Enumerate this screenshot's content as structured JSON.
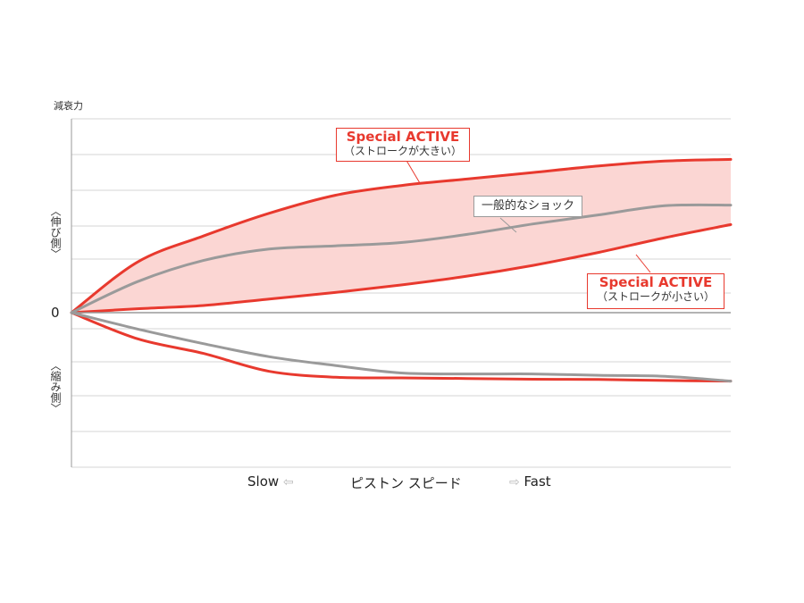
{
  "chart_data": {
    "type": "line",
    "ylabel": "減衰力",
    "ylabel_upper": "︿伸び側﹀",
    "ylabel_lower": "︿縮み側﹀",
    "zero_label": "0",
    "xlabel": "ピストン スピード",
    "x_left_label": "Slow",
    "x_right_label": "Fast",
    "x_left_arrow": "⇦",
    "x_right_arrow": "⇨",
    "x": [
      0,
      0.1,
      0.2,
      0.3,
      0.4,
      0.5,
      0.6,
      0.7,
      0.8,
      0.9,
      1.0
    ],
    "xlim": [
      0,
      1
    ],
    "ylim": [
      -4.75,
      5.8
    ],
    "grid": true,
    "series": [
      {
        "name": "Special ACTIVE（ストロークが大きい）",
        "color": "#e8392e",
        "values": [
          0,
          1.55,
          2.35,
          3.05,
          3.6,
          3.9,
          4.1,
          4.3,
          4.5,
          4.65,
          4.7
        ]
      },
      {
        "name": "Special ACTIVE（ストロークが小さい）",
        "color": "#e8392e",
        "values": [
          0,
          0.12,
          0.22,
          0.42,
          0.62,
          0.85,
          1.12,
          1.45,
          1.85,
          2.3,
          2.7
        ]
      },
      {
        "name": "一般的なショック",
        "color": "#9a9a9a",
        "values": [
          0,
          0.95,
          1.6,
          1.95,
          2.05,
          2.15,
          2.4,
          2.72,
          3.0,
          3.28,
          3.3
        ]
      },
      {
        "color": "#e8392e",
        "values": [
          0,
          -0.8,
          -1.25,
          -1.8,
          -1.98,
          -2.0,
          -2.02,
          -2.04,
          -2.05,
          -2.08,
          -2.1
        ]
      },
      {
        "color": "#9a9a9a",
        "values": [
          0,
          -0.5,
          -0.95,
          -1.35,
          -1.62,
          -1.85,
          -1.88,
          -1.88,
          -1.92,
          -1.95,
          -2.1
        ]
      }
    ],
    "band_fill": "#fbd6d3",
    "annotations": {
      "big": {
        "title": "Special ACTIVE",
        "subtitle": "（ストロークが大きい）"
      },
      "small": {
        "title": "Special ACTIVE",
        "subtitle": "（ストロークが小さい）"
      },
      "normal": {
        "label": "一般的なショック"
      }
    }
  }
}
